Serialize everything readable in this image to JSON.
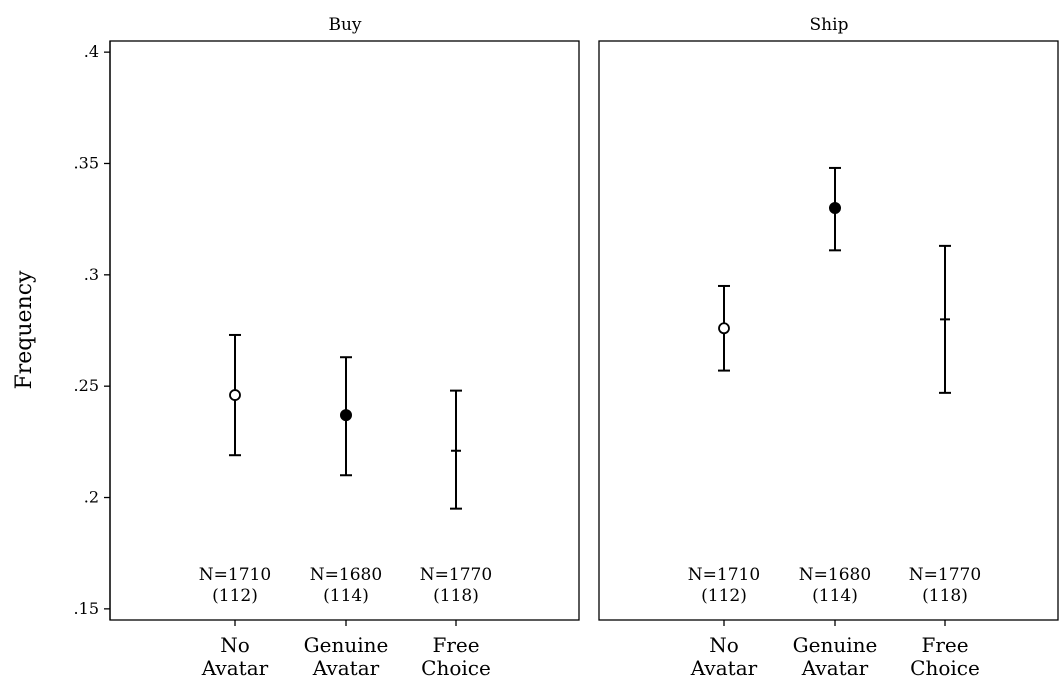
{
  "chart_data": {
    "type": "scatter",
    "ylabel": "Frequency",
    "ylim": [
      0.145,
      0.405
    ],
    "yticks": [
      {
        "value": 0.15,
        "label": ".15"
      },
      {
        "value": 0.2,
        "label": ".2"
      },
      {
        "value": 0.25,
        "label": ".25"
      },
      {
        "value": 0.3,
        "label": ".3"
      },
      {
        "value": 0.35,
        "label": ".35"
      },
      {
        "value": 0.4,
        "label": ".4"
      }
    ],
    "categories": [
      {
        "line1": "No",
        "line2": "Avatar"
      },
      {
        "line1": "Genuine",
        "line2": "Avatar"
      },
      {
        "line1": "Free",
        "line2": "Choice"
      }
    ],
    "marker_styles": [
      "hollow-circle",
      "filled-circle",
      "plus"
    ],
    "grid": false,
    "panels": [
      {
        "title": "Buy",
        "points": [
          {
            "estimate": 0.246,
            "lower": 0.219,
            "upper": 0.273,
            "n_label": "N=1710",
            "sub_label": "(112)"
          },
          {
            "estimate": 0.237,
            "lower": 0.21,
            "upper": 0.263,
            "n_label": "N=1680",
            "sub_label": "(114)"
          },
          {
            "estimate": 0.221,
            "lower": 0.195,
            "upper": 0.248,
            "n_label": "N=1770",
            "sub_label": "(118)"
          }
        ]
      },
      {
        "title": "Ship",
        "points": [
          {
            "estimate": 0.276,
            "lower": 0.257,
            "upper": 0.295,
            "n_label": "N=1710",
            "sub_label": "(112)"
          },
          {
            "estimate": 0.33,
            "lower": 0.311,
            "upper": 0.348,
            "n_label": "N=1680",
            "sub_label": "(114)"
          },
          {
            "estimate": 0.28,
            "lower": 0.247,
            "upper": 0.313,
            "n_label": "N=1770",
            "sub_label": "(118)"
          }
        ]
      }
    ]
  }
}
